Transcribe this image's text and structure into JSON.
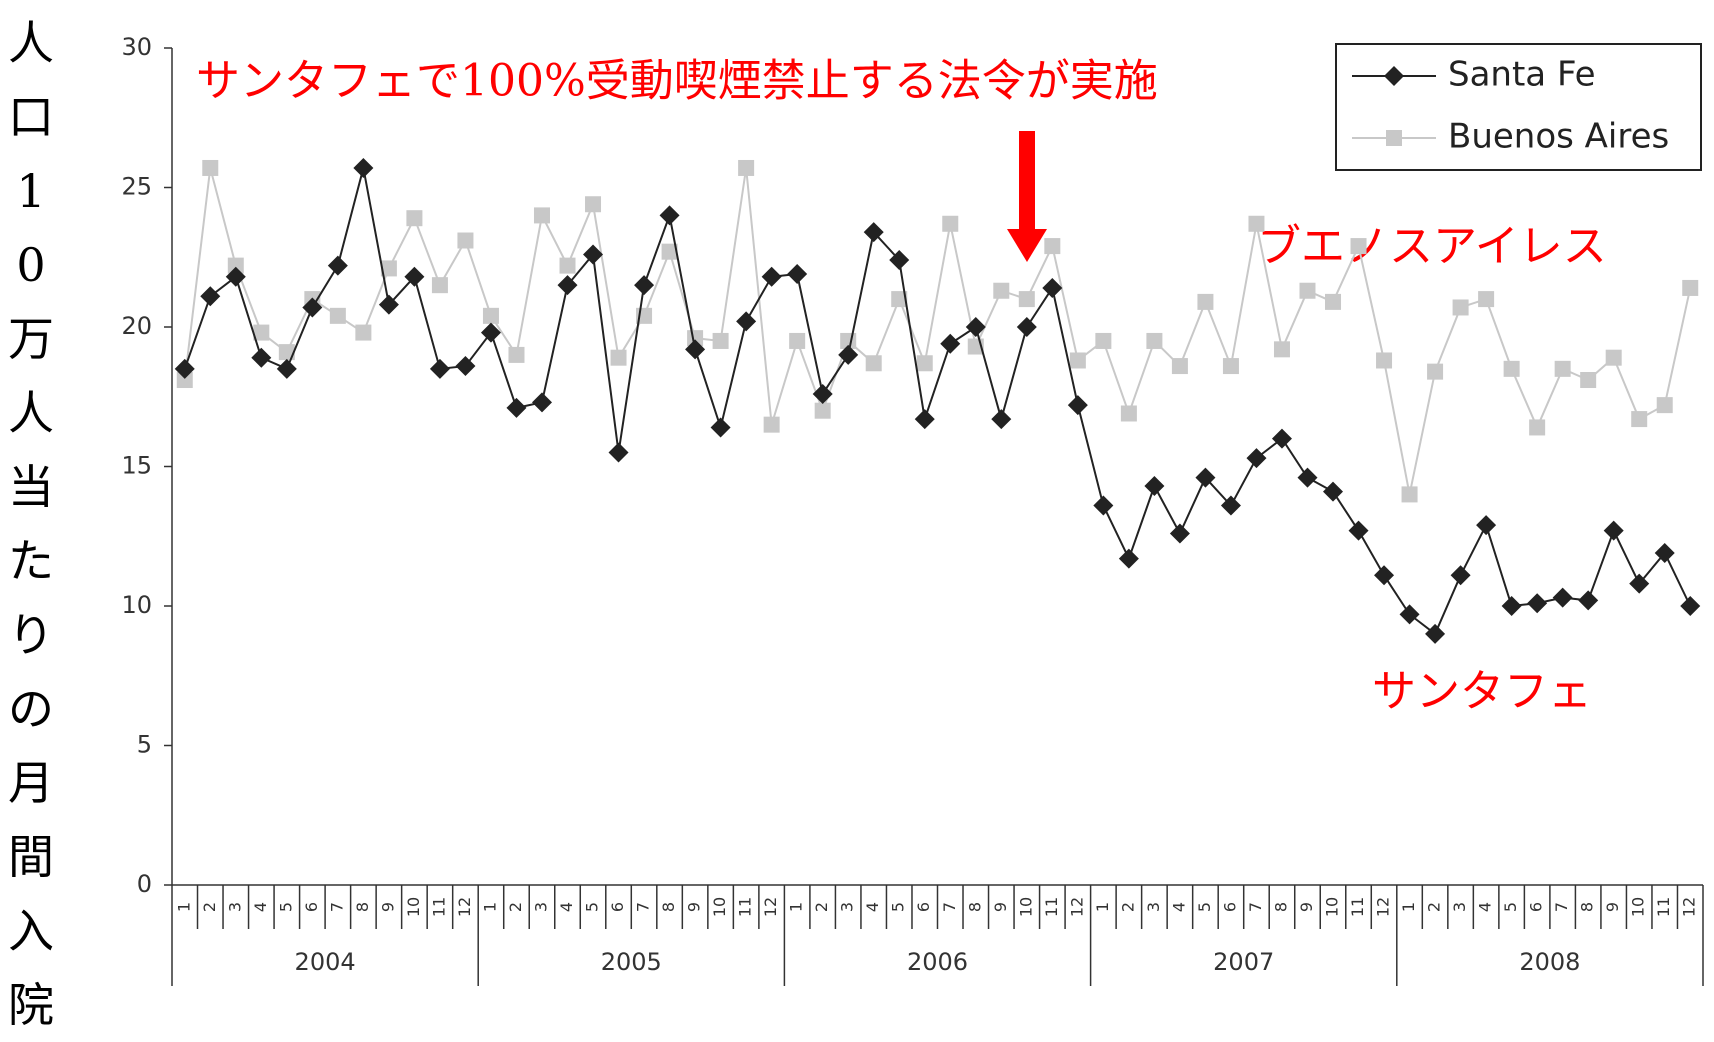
{
  "chart_data": {
    "type": "line",
    "y_label": "人口10万人当たりの月間入院",
    "annotation_title": "サンタフェで100%受動喫煙禁止する法令が実施",
    "annotation_buenos_aires": "ブエノスアイレス",
    "annotation_santa_fe": "サンタフェ",
    "categories": [
      "1",
      "2",
      "3",
      "4",
      "5",
      "6",
      "7",
      "8",
      "9",
      "10",
      "11",
      "12",
      "1",
      "2",
      "3",
      "4",
      "5",
      "6",
      "7",
      "8",
      "9",
      "10",
      "11",
      "12",
      "1",
      "2",
      "3",
      "4",
      "5",
      "6",
      "7",
      "8",
      "9",
      "10",
      "11",
      "12",
      "1",
      "2",
      "3",
      "4",
      "5",
      "6",
      "7",
      "8",
      "9",
      "10",
      "11",
      "12",
      "1",
      "2",
      "3",
      "4",
      "5",
      "6",
      "7",
      "8",
      "9",
      "10",
      "11",
      "12"
    ],
    "years": [
      "2004",
      "2005",
      "2006",
      "2007",
      "2008"
    ],
    "series": [
      {
        "name": "Santa Fe",
        "color": "#222222",
        "marker": "diamond",
        "values": [
          18.5,
          21.1,
          21.8,
          18.9,
          18.5,
          20.7,
          22.2,
          25.7,
          20.8,
          21.8,
          18.5,
          18.6,
          19.8,
          17.1,
          17.3,
          21.5,
          22.6,
          15.5,
          21.5,
          24.0,
          19.2,
          16.4,
          20.2,
          21.8,
          21.9,
          17.6,
          19.0,
          23.4,
          22.4,
          16.7,
          19.4,
          20.0,
          16.7,
          20.0,
          21.4,
          17.2,
          13.6,
          11.7,
          14.3,
          12.6,
          14.6,
          13.6,
          15.3,
          16.0,
          14.6,
          14.1,
          12.7,
          11.1,
          9.7,
          9.0,
          11.1,
          12.9,
          10.0,
          10.1,
          10.3,
          10.2,
          12.7,
          10.8,
          11.9,
          10.0
        ]
      },
      {
        "name": "Buenos Aires",
        "color": "#c8c8c8",
        "marker": "square",
        "values": [
          18.1,
          25.7,
          22.2,
          19.8,
          19.1,
          21.0,
          20.4,
          19.8,
          22.1,
          23.9,
          21.5,
          23.1,
          20.4,
          19.0,
          24.0,
          22.2,
          24.4,
          18.9,
          20.4,
          22.7,
          19.6,
          19.5,
          25.7,
          16.5,
          19.5,
          17.0,
          19.5,
          18.7,
          21.0,
          18.7,
          23.7,
          19.3,
          21.3,
          21.0,
          22.9,
          18.8,
          19.5,
          16.9,
          19.5,
          18.6,
          20.9,
          18.6,
          23.7,
          19.2,
          21.3,
          20.9,
          22.9,
          18.8,
          14.0,
          18.4,
          20.7,
          21.0,
          18.5,
          16.4,
          18.5,
          18.1,
          18.9,
          16.7,
          17.2,
          21.4
        ]
      }
    ],
    "ylim": [
      0,
      30
    ],
    "yticks": [
      0,
      5,
      10,
      15,
      20,
      25,
      30
    ],
    "grid": false,
    "legend": "upper right",
    "annotation_color": "#ff0000"
  }
}
